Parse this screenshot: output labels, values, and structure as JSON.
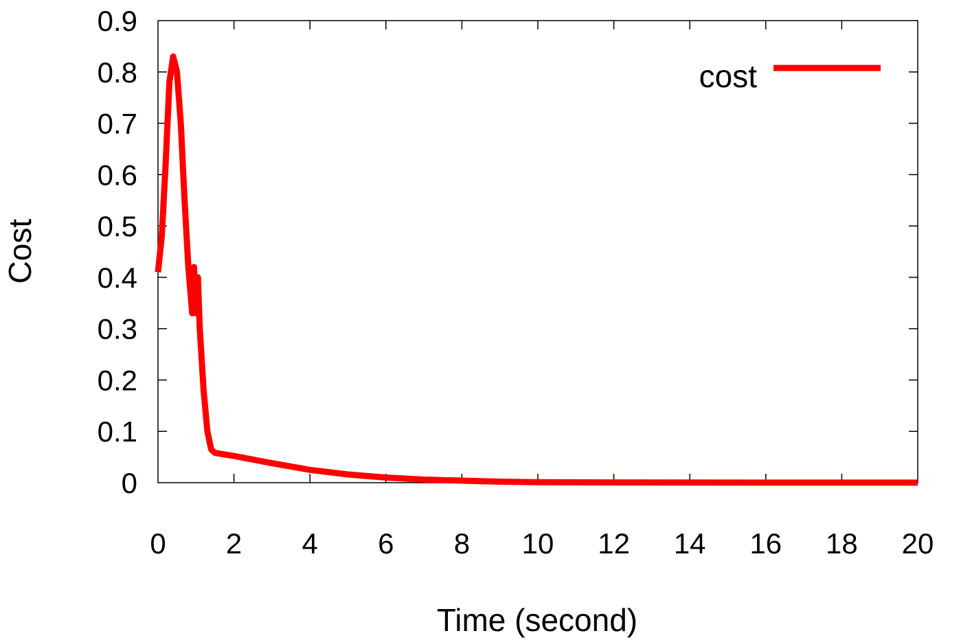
{
  "chart_data": {
    "type": "line",
    "title": "",
    "xlabel": "Time (second)",
    "ylabel": "Cost",
    "xlim": [
      0,
      20
    ],
    "ylim": [
      0,
      0.9
    ],
    "xticks": [
      0,
      2,
      4,
      6,
      8,
      10,
      12,
      14,
      16,
      18,
      20
    ],
    "yticks": [
      0,
      0.1,
      0.2,
      0.3,
      0.4,
      0.5,
      0.6,
      0.7,
      0.8,
      0.9
    ],
    "xtick_labels": [
      "0",
      "2",
      "4",
      "6",
      "8",
      "10",
      "12",
      "14",
      "16",
      "18",
      "20"
    ],
    "ytick_labels": [
      "0",
      "0.1",
      "0.2",
      "0.3",
      "0.4",
      "0.5",
      "0.6",
      "0.7",
      "0.8",
      "0.9"
    ],
    "grid": false,
    "legend": {
      "position": "top-right",
      "entries": [
        "cost"
      ]
    },
    "series": [
      {
        "name": "cost",
        "color": "#ff0000",
        "x": [
          0,
          0.1,
          0.2,
          0.3,
          0.4,
          0.5,
          0.6,
          0.7,
          0.8,
          0.9,
          0.95,
          1.0,
          1.05,
          1.1,
          1.2,
          1.3,
          1.4,
          1.5,
          2,
          3,
          4,
          5,
          6,
          7,
          8,
          9,
          10,
          12,
          14,
          16,
          18,
          20
        ],
        "y": [
          0.41,
          0.48,
          0.62,
          0.78,
          0.83,
          0.8,
          0.7,
          0.55,
          0.42,
          0.33,
          0.42,
          0.33,
          0.4,
          0.3,
          0.18,
          0.1,
          0.065,
          0.058,
          0.052,
          0.038,
          0.025,
          0.016,
          0.01,
          0.006,
          0.004,
          0.002,
          0.001,
          0.0005,
          0.0003,
          0.0002,
          0.0001,
          0.0001
        ]
      }
    ]
  }
}
